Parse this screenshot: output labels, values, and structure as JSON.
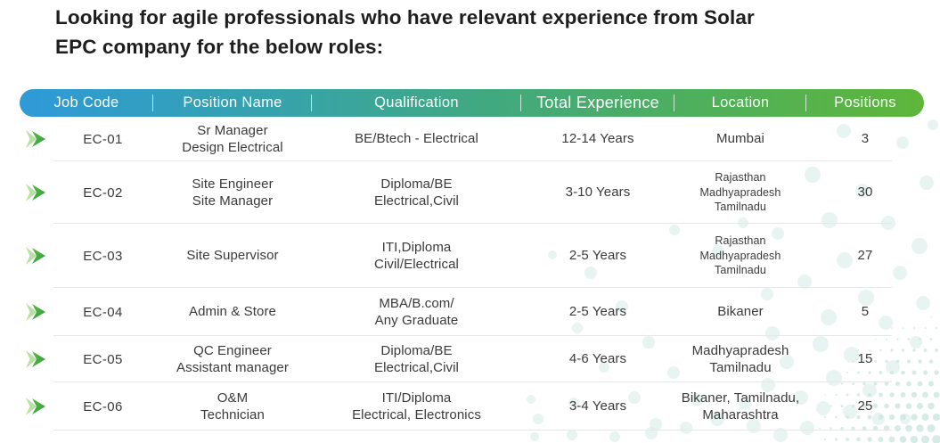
{
  "heading": {
    "text": "Looking for agile professionals who have relevant experience from Solar\nEPC company for the below roles:"
  },
  "table": {
    "columns": [
      "Job Code",
      "Position Name",
      "Qualification",
      "Total Experience",
      "Location",
      "Positions"
    ],
    "rows": [
      {
        "job_code": "EC-01",
        "position": "Sr Manager\nDesign Electrical",
        "qualification": "BE/Btech - Electrical",
        "experience": "12-14 Years",
        "location": "Mumbai",
        "positions": "3"
      },
      {
        "job_code": "EC-02",
        "position": "Site Engineer\nSite Manager",
        "qualification": "Diploma/BE\nElectrical,Civil",
        "experience": "3-10 Years",
        "location": "Rajasthan\nMadhyapradesh\nTamilnadu",
        "positions": "30",
        "location_small": true
      },
      {
        "job_code": "EC-03",
        "position": "Site Supervisor",
        "qualification": "ITI,Diploma\nCivil/Electrical",
        "experience": "2-5 Years",
        "location": "Rajasthan\nMadhyapradesh\nTamilnadu",
        "positions": "27",
        "location_small": true
      },
      {
        "job_code": "EC-04",
        "position": "Admin & Store",
        "qualification": "MBA/B.com/\nAny Graduate",
        "experience": "2-5 Years",
        "location": "Bikaner",
        "positions": "5"
      },
      {
        "job_code": "EC-05",
        "position": "QC Engineer\nAssistant manager",
        "qualification": "Diploma/BE\nElectrical,Civil",
        "experience": "4-6 Years",
        "location": "Madhyapradesh\nTamilnadu",
        "positions": "15"
      },
      {
        "job_code": "EC-06",
        "position": "O&M\nTechnician",
        "qualification": "ITI/Diploma\nElectrical, Electronics",
        "experience": "3-4 Years",
        "location": "Bikaner, Tamilnadu,\nMaharashtra",
        "positions": "25"
      }
    ]
  },
  "icons": {
    "row_marker": "double-chevron-right-icon"
  },
  "colors": {
    "header_gradient_start": "#2e9ad8",
    "header_gradient_mid": "#3fa788",
    "header_gradient_end": "#5eb63a",
    "arrow_green": "#4aae3f",
    "arrow_green_light": "#b7e0a4",
    "dot_teal": "#d9ece7",
    "text_dark": "#1e1e1e",
    "row_separator": "#e6e7e7"
  }
}
